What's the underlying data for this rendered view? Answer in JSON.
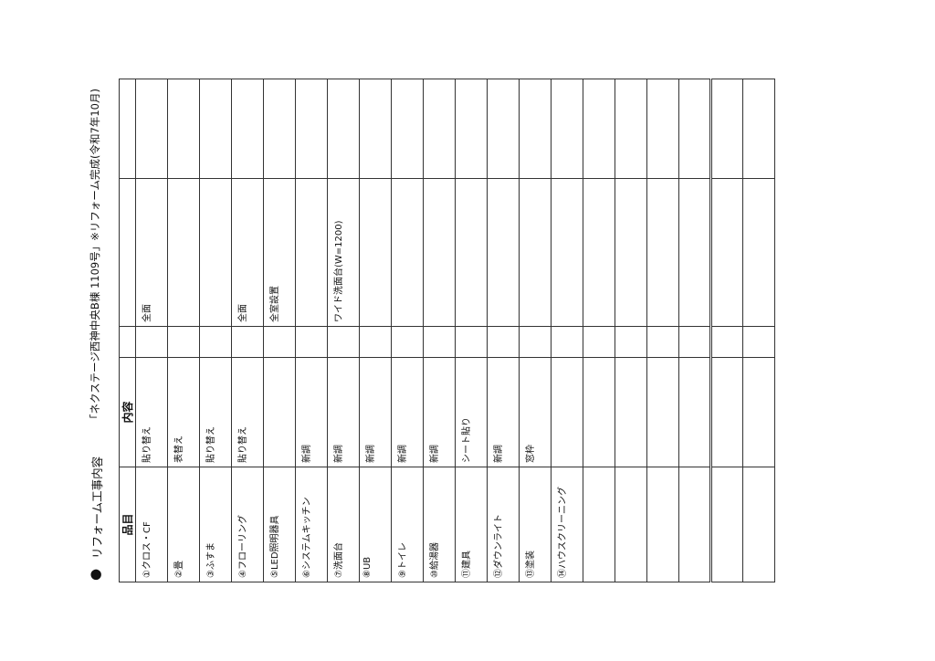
{
  "title": {
    "bullet": "●",
    "main": "リフォーム工事内容",
    "sub": "「ネクステージ西神中央B棟 1109号」※リフォーム完成(令和7年10月)"
  },
  "header": {
    "item": "品目",
    "content": "内容",
    "blank": "",
    "detail": "",
    "note": ""
  },
  "rows": [
    {
      "item": "①クロス・CF",
      "content": "貼り替え",
      "detail": "全面"
    },
    {
      "item": "②畳",
      "content": "表替え",
      "detail": ""
    },
    {
      "item": "③ふすま",
      "content": "貼り替え",
      "detail": ""
    },
    {
      "item": "④フローリング",
      "content": "貼り替え",
      "detail": "全面"
    },
    {
      "item": "⑤LED照明器具",
      "content": "",
      "detail": "全室設置"
    },
    {
      "item": "⑥システムキッチン",
      "content": "新調",
      "detail": ""
    },
    {
      "item": "⑦洗面台",
      "content": "新調",
      "detail": "ワイド洗面台(W=1200)"
    },
    {
      "item": "⑧UB",
      "content": "新調",
      "detail": ""
    },
    {
      "item": "⑨トイレ",
      "content": "新調",
      "detail": ""
    },
    {
      "item": "⑩給湯器",
      "content": "新調",
      "detail": ""
    },
    {
      "item": "⑪建具",
      "content": "シート貼り",
      "detail": ""
    },
    {
      "item": "⑫ダウンライト",
      "content": "新調",
      "detail": ""
    },
    {
      "item": "⑬塗装",
      "content": "窓枠",
      "detail": ""
    },
    {
      "item": "⑭ハウスクリーニング",
      "content": "",
      "detail": ""
    },
    {
      "item": "",
      "content": "",
      "detail": ""
    },
    {
      "item": "",
      "content": "",
      "detail": ""
    },
    {
      "item": "",
      "content": "",
      "detail": ""
    },
    {
      "item": "",
      "content": "",
      "detail": ""
    },
    {
      "item": "",
      "content": "",
      "detail": ""
    },
    {
      "item": "",
      "content": "",
      "detail": ""
    }
  ]
}
